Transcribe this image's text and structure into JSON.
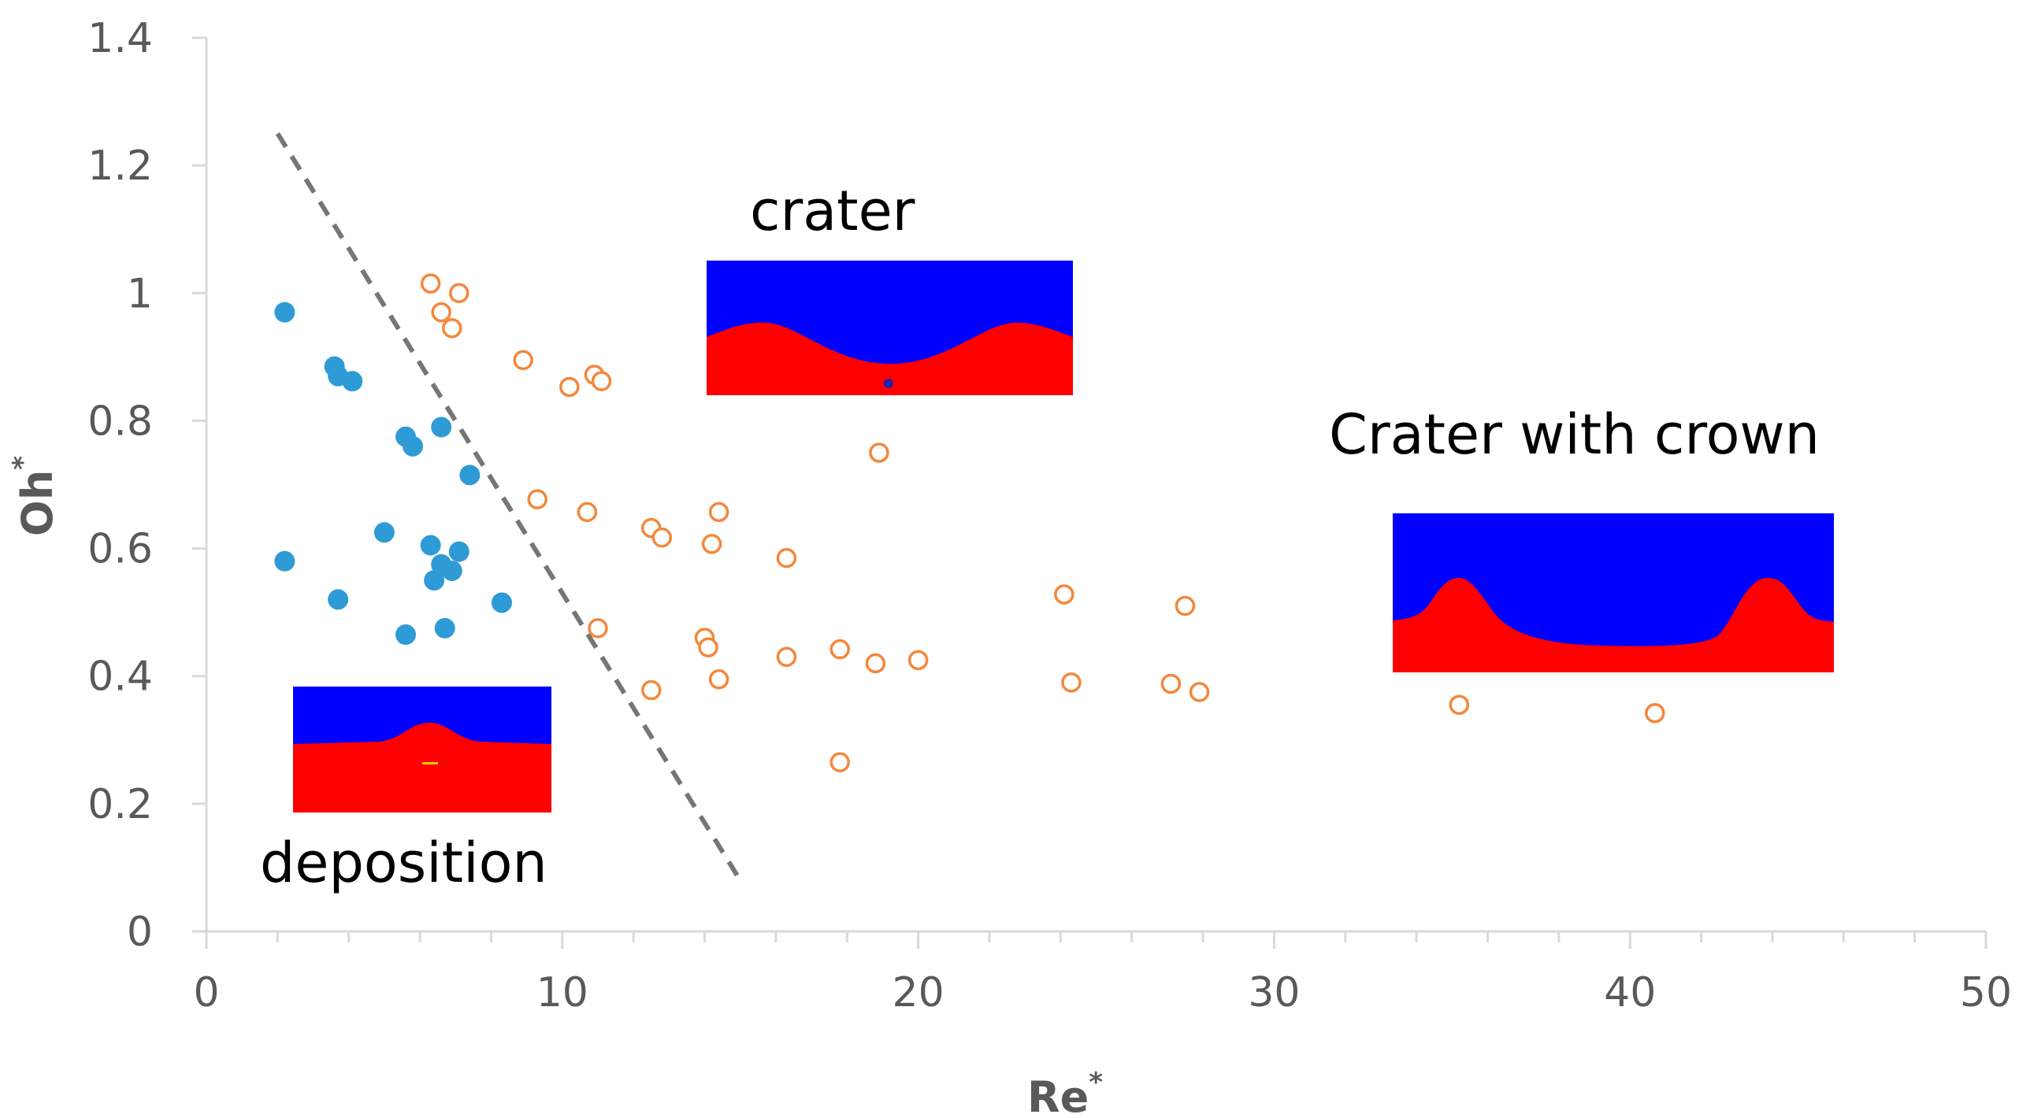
{
  "chart_data": {
    "type": "scatter",
    "xlabel": "Re",
    "xlabel_sup": "*",
    "ylabel": "Oh",
    "ylabel_sup": "*",
    "xlim": [
      0,
      50
    ],
    "ylim": [
      0,
      1.4
    ],
    "x_ticks": [
      0,
      10,
      20,
      30,
      40,
      50
    ],
    "x_tick_labels": [
      "0",
      "10",
      "20",
      "30",
      "40",
      "50"
    ],
    "y_ticks": [
      0,
      0.2,
      0.4,
      0.6,
      0.8,
      1,
      1.2,
      1.4
    ],
    "y_tick_labels": [
      "0",
      "0.2",
      "0.4",
      "0.6",
      "0.8",
      "1",
      "1.2",
      "1.4"
    ],
    "x_minor_step": 2,
    "grid": false,
    "colors": {
      "axis": "#d9d9d9",
      "deposition": "#2e9bd6",
      "crater": "#f4873b",
      "divider": "#767676",
      "fluid_top": "#0000ff",
      "fluid_bottom": "#ff0000",
      "text": "#595959"
    },
    "series": [
      {
        "name": "deposition",
        "marker": "filled-circle",
        "points": [
          [
            2.2,
            0.97
          ],
          [
            3.6,
            0.885
          ],
          [
            3.7,
            0.87
          ],
          [
            4.1,
            0.862
          ],
          [
            5.6,
            0.775
          ],
          [
            5.8,
            0.76
          ],
          [
            6.6,
            0.79
          ],
          [
            7.4,
            0.715
          ],
          [
            2.2,
            0.58
          ],
          [
            3.7,
            0.52
          ],
          [
            5.0,
            0.625
          ],
          [
            6.3,
            0.605
          ],
          [
            6.6,
            0.575
          ],
          [
            6.9,
            0.565
          ],
          [
            7.1,
            0.595
          ],
          [
            6.4,
            0.55
          ],
          [
            8.3,
            0.515
          ],
          [
            5.6,
            0.465
          ],
          [
            6.7,
            0.475
          ]
        ]
      },
      {
        "name": "crater",
        "marker": "open-circle",
        "points": [
          [
            6.3,
            1.015
          ],
          [
            7.1,
            1.0
          ],
          [
            6.6,
            0.97
          ],
          [
            6.9,
            0.945
          ],
          [
            8.9,
            0.895
          ],
          [
            10.2,
            0.853
          ],
          [
            10.9,
            0.872
          ],
          [
            11.1,
            0.862
          ],
          [
            18.9,
            0.75
          ],
          [
            9.3,
            0.677
          ],
          [
            10.7,
            0.657
          ],
          [
            14.4,
            0.657
          ],
          [
            12.5,
            0.632
          ],
          [
            12.8,
            0.617
          ],
          [
            14.2,
            0.607
          ],
          [
            16.3,
            0.585
          ],
          [
            11.0,
            0.475
          ],
          [
            14.0,
            0.46
          ],
          [
            14.1,
            0.445
          ],
          [
            16.3,
            0.43
          ],
          [
            17.8,
            0.442
          ],
          [
            18.8,
            0.42
          ],
          [
            20.0,
            0.425
          ],
          [
            12.5,
            0.378
          ],
          [
            14.4,
            0.395
          ],
          [
            17.8,
            0.265
          ],
          [
            24.1,
            0.528
          ],
          [
            27.5,
            0.51
          ],
          [
            24.3,
            0.39
          ],
          [
            27.1,
            0.388
          ],
          [
            27.9,
            0.375
          ],
          [
            35.2,
            0.355
          ],
          [
            40.7,
            0.342
          ]
        ]
      }
    ],
    "divider_line": {
      "from": [
        2.0,
        1.25
      ],
      "to": [
        15.0,
        0.08
      ],
      "style": "dashed"
    },
    "annotations": {
      "deposition": "deposition",
      "crater": "crater",
      "crater_crown": "Crater with crown"
    }
  }
}
